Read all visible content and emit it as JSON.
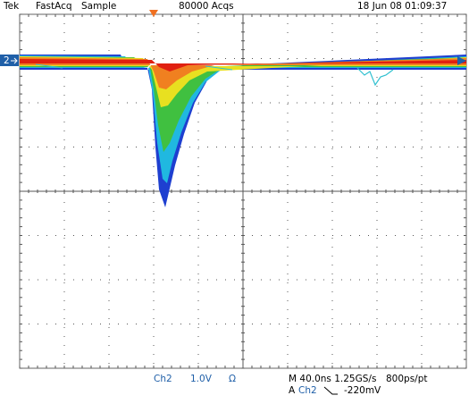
{
  "header": {
    "brand": "Tek",
    "mode": "FastAcq",
    "acq_mode": "Sample",
    "acquisitions": "80000 Acqs",
    "timestamp": "18 Jun 08 01:09:37"
  },
  "channel_marker": "2",
  "footer": {
    "channel": "Ch2",
    "scale": "1.0V",
    "coupling": "Ω",
    "timebase": "M 40.0ns 1.25GS/s",
    "resolution": "800ps/pt",
    "trigger_label": "A",
    "trigger_source": "Ch2",
    "trigger_level": "-220mV"
  }
}
